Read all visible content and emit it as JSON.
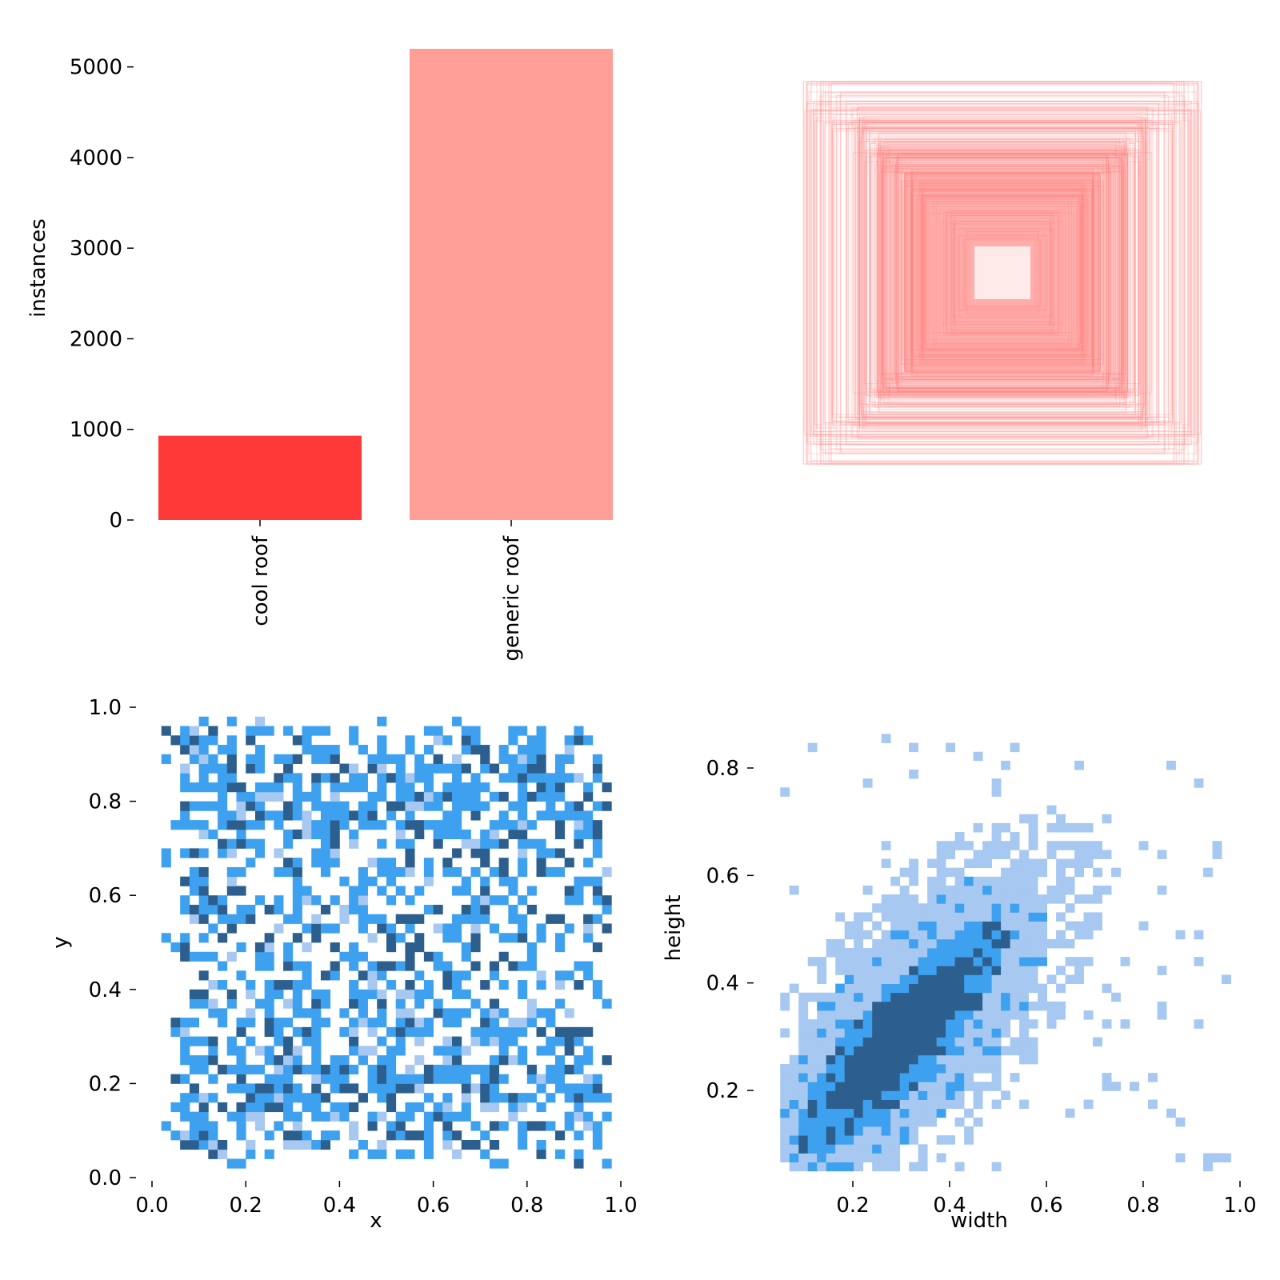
{
  "colors": {
    "cool_roof": "#ff3838",
    "generic_roof": "#ff9d97",
    "box_stroke": "#ff7d7a",
    "hist_light": "#a7c8f0",
    "hist_mid": "#3ea1ef",
    "hist_dark": "#2d5f8e",
    "tick": "#000000"
  },
  "chart_data": [
    {
      "type": "bar",
      "title": "",
      "xlabel": "",
      "ylabel": "instances",
      "categories": [
        "cool roof",
        "generic roof"
      ],
      "values": [
        930,
        5200
      ],
      "ylim": [
        0,
        5200
      ],
      "yticks": [
        0,
        1000,
        2000,
        3000,
        4000,
        5000
      ],
      "ytick_labels": [
        "0",
        "1000",
        "2000",
        "3000",
        "4000",
        "5000"
      ],
      "bar_colors": [
        "#ff3838",
        "#ff9d97"
      ],
      "grid": false
    },
    {
      "type": "scatter",
      "title": "",
      "xlabel": "",
      "ylabel": "",
      "description_of_marks": "centered box outlines, width x height",
      "box_stroke_color": "#ff7d7a",
      "grid": false
    },
    {
      "type": "heatmap",
      "title": "",
      "xlabel": "x",
      "ylabel": "y",
      "xlim": [
        0,
        1
      ],
      "ylim": [
        0,
        1
      ],
      "xticks": [
        0.0,
        0.2,
        0.4,
        0.6,
        0.8,
        1.0
      ],
      "xtick_labels": [
        "0.0",
        "0.2",
        "0.4",
        "0.6",
        "0.8",
        "1.0"
      ],
      "yticks": [
        0.0,
        0.2,
        0.4,
        0.6,
        0.8,
        1.0
      ],
      "ytick_labels": [
        "0.0",
        "0.2",
        "0.4",
        "0.6",
        "0.8",
        "1.0"
      ],
      "bins": 50,
      "grid": false
    },
    {
      "type": "heatmap",
      "title": "",
      "xlabel": "width",
      "ylabel": "height",
      "xlim": [
        0.05,
        1.0
      ],
      "ylim": [
        0.05,
        0.88
      ],
      "xticks": [
        0.2,
        0.4,
        0.6,
        0.8,
        1.0
      ],
      "xtick_labels": [
        "0.2",
        "0.4",
        "0.6",
        "0.8",
        "1.0"
      ],
      "yticks": [
        0.2,
        0.4,
        0.6,
        0.8
      ],
      "ytick_labels": [
        "0.2",
        "0.4",
        "0.6",
        "0.8"
      ],
      "bins": 50,
      "grid": false
    }
  ]
}
